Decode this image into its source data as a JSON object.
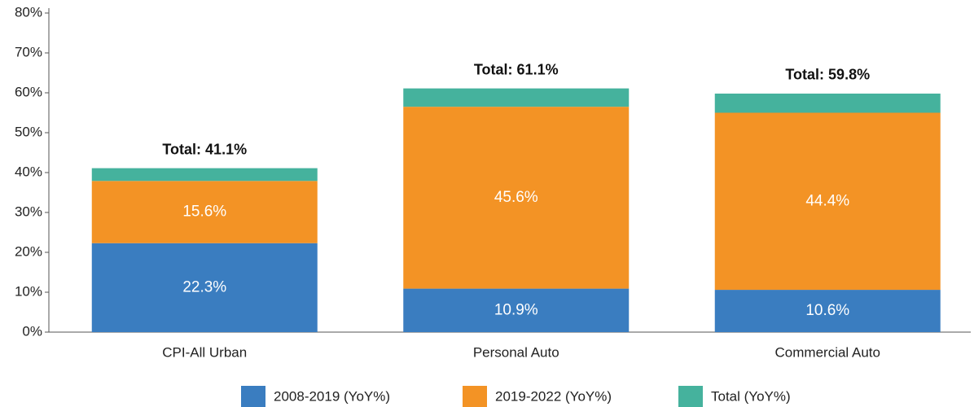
{
  "chart_data": {
    "type": "stacked_bar",
    "categories": [
      "CPI-All Urban",
      "Personal Auto",
      "Commercial Auto"
    ],
    "series": [
      {
        "name": "2008-2019 (YoY%)",
        "color": "#3a7dc0",
        "values": [
          22.3,
          10.9,
          10.6
        ],
        "value_labels": [
          "22.3%",
          "10.9%",
          "10.6%"
        ]
      },
      {
        "name": "2019-2022 (YoY%)",
        "color": "#f39325",
        "values": [
          15.6,
          45.6,
          44.4
        ],
        "value_labels": [
          "15.6%",
          "45.6%",
          "44.4%"
        ]
      },
      {
        "name": "Total (YoY%)",
        "color": "#45b29d",
        "values": [
          3.2,
          4.6,
          4.8
        ]
      }
    ],
    "totals": {
      "values": [
        41.1,
        61.1,
        59.8
      ],
      "value_labels": [
        "Total: 41.1%",
        "Total: 61.1%",
        "Total: 59.8%"
      ]
    },
    "ylim": [
      0,
      80
    ],
    "yticks": [
      {
        "value": 0,
        "label": "0%"
      },
      {
        "value": 10,
        "label": "10%"
      },
      {
        "value": 20,
        "label": "20%"
      },
      {
        "value": 30,
        "label": "30%"
      },
      {
        "value": 40,
        "label": "40%"
      },
      {
        "value": 50,
        "label": "50%"
      },
      {
        "value": 60,
        "label": "60%"
      },
      {
        "value": 70,
        "label": "70%"
      },
      {
        "value": 80,
        "label": "80%"
      }
    ],
    "legend": "bottom"
  }
}
